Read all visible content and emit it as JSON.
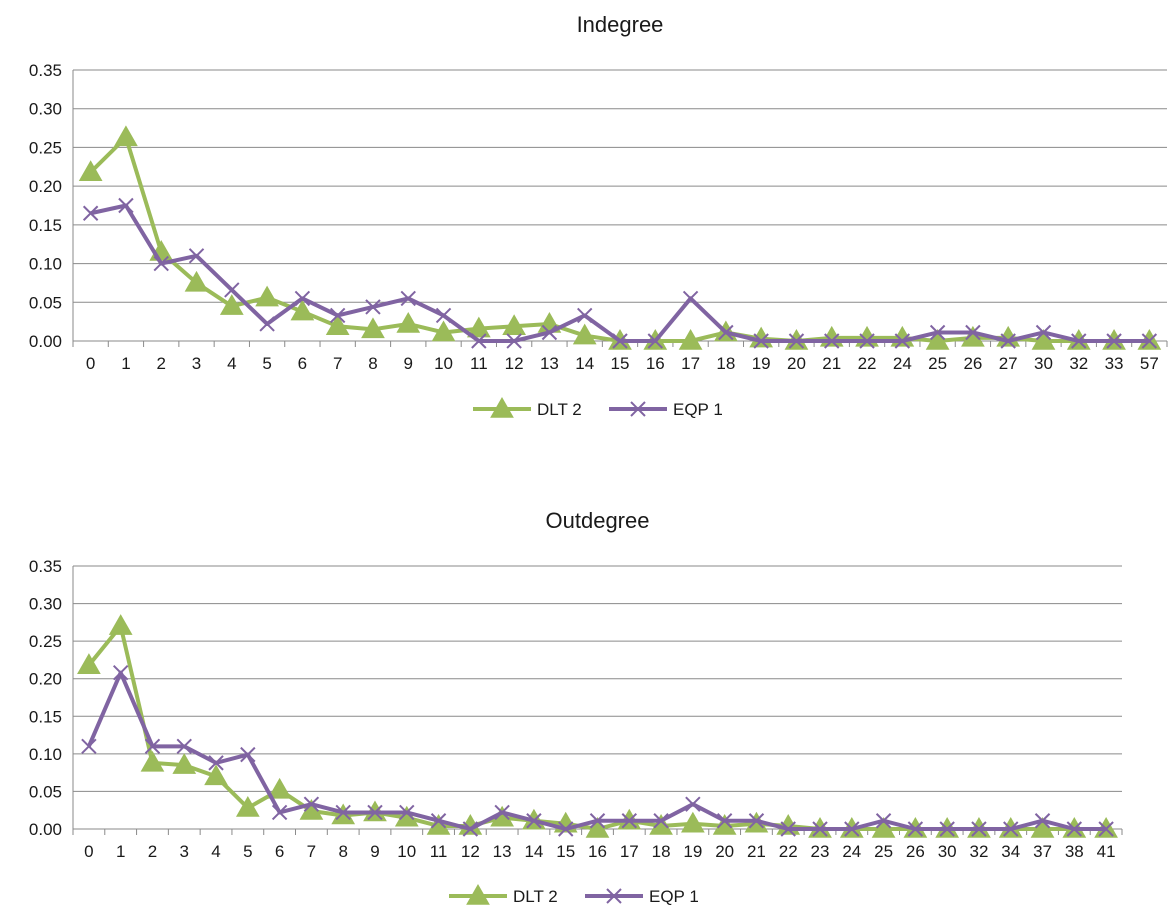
{
  "colors": {
    "dlt": "#9bbb59",
    "eqp": "#8064a2",
    "grid": "#8a8a8a",
    "text": "#1a1a1a"
  },
  "chart_data": [
    {
      "type": "line",
      "title": "Indegree",
      "xlabel": "",
      "ylabel": "",
      "ylim": [
        0,
        0.35
      ],
      "yticks": [
        "0.00",
        "0.05",
        "0.10",
        "0.15",
        "0.20",
        "0.25",
        "0.30",
        "0.35"
      ],
      "categories": [
        "0",
        "1",
        "2",
        "3",
        "4",
        "5",
        "6",
        "7",
        "8",
        "9",
        "10",
        "11",
        "12",
        "13",
        "14",
        "15",
        "16",
        "17",
        "18",
        "19",
        "20",
        "21",
        "22",
        "24",
        "25",
        "26",
        "27",
        "30",
        "32",
        "33",
        "57"
      ],
      "series": [
        {
          "name": "DLT 2",
          "marker": "triangle",
          "color": "#9bbb59",
          "values": [
            0.218,
            0.263,
            0.115,
            0.075,
            0.045,
            0.056,
            0.038,
            0.019,
            0.015,
            0.022,
            0.011,
            0.016,
            0.019,
            0.022,
            0.007,
            0.0,
            0.0,
            0.0,
            0.011,
            0.003,
            0.0,
            0.004,
            0.004,
            0.004,
            0.0,
            0.004,
            0.004,
            0.0,
            0.0,
            0.0,
            0.0
          ]
        },
        {
          "name": "EQP 1",
          "marker": "x",
          "color": "#8064a2",
          "values": [
            0.165,
            0.175,
            0.1,
            0.11,
            0.066,
            0.022,
            0.055,
            0.033,
            0.044,
            0.055,
            0.033,
            0.0,
            0.0,
            0.011,
            0.033,
            0.0,
            0.0,
            0.055,
            0.011,
            0.0,
            0.0,
            0.0,
            0.0,
            0.0,
            0.011,
            0.011,
            0.0,
            0.011,
            0.0,
            0.0,
            0.0
          ]
        }
      ],
      "legend": "bottom"
    },
    {
      "type": "line",
      "title": "Outdegree",
      "xlabel": "",
      "ylabel": "",
      "ylim": [
        0,
        0.35
      ],
      "yticks": [
        "0.00",
        "0.05",
        "0.10",
        "0.15",
        "0.20",
        "0.25",
        "0.30",
        "0.35"
      ],
      "categories": [
        "0",
        "1",
        "2",
        "3",
        "4",
        "5",
        "6",
        "7",
        "8",
        "9",
        "10",
        "11",
        "12",
        "13",
        "14",
        "15",
        "16",
        "17",
        "18",
        "19",
        "20",
        "21",
        "22",
        "23",
        "24",
        "25",
        "26",
        "30",
        "32",
        "34",
        "37",
        "38",
        "41"
      ],
      "series": [
        {
          "name": "DLT 2",
          "marker": "triangle",
          "color": "#9bbb59",
          "values": [
            0.218,
            0.27,
            0.088,
            0.085,
            0.07,
            0.028,
            0.052,
            0.024,
            0.018,
            0.022,
            0.015,
            0.004,
            0.004,
            0.015,
            0.011,
            0.007,
            0.0,
            0.011,
            0.004,
            0.007,
            0.004,
            0.007,
            0.004,
            0.0,
            0.0,
            0.0,
            0.0,
            0.0,
            0.0,
            0.0,
            0.0,
            0.0,
            0.0
          ]
        },
        {
          "name": "EQP 1",
          "marker": "x",
          "color": "#8064a2",
          "values": [
            0.11,
            0.208,
            0.11,
            0.11,
            0.088,
            0.099,
            0.022,
            0.033,
            0.022,
            0.022,
            0.022,
            0.011,
            0.0,
            0.022,
            0.011,
            0.0,
            0.011,
            0.011,
            0.011,
            0.033,
            0.011,
            0.011,
            0.0,
            0.0,
            0.0,
            0.011,
            0.0,
            0.0,
            0.0,
            0.0,
            0.011,
            0.0,
            0.0
          ]
        }
      ],
      "legend": "bottom"
    }
  ]
}
